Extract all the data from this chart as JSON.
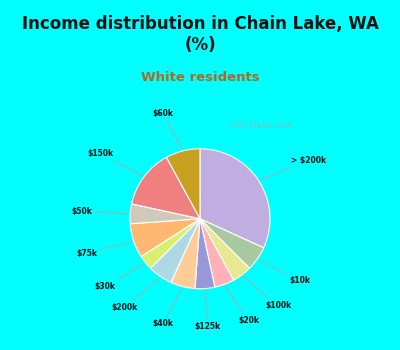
{
  "title": "Income distribution in Chain Lake, WA\n(%)",
  "subtitle": "White residents",
  "title_color": "#111111",
  "subtitle_color": "#b06820",
  "bg_color": "#00ffff",
  "chart_bg_color": "#e8f5ee",
  "labels": [
    "> $200k",
    "$10k",
    "$100k",
    "$20k",
    "$125k",
    "$40k",
    "$200k",
    "$30k",
    "$75k",
    "$50k",
    "$150k",
    "$60k"
  ],
  "values": [
    28,
    5,
    4,
    4,
    4,
    5,
    5,
    3,
    7,
    4,
    12,
    7
  ],
  "colors": [
    "#c0aee0",
    "#a8c8a0",
    "#e8e890",
    "#ffb0b8",
    "#9898d8",
    "#ffcc98",
    "#add8e6",
    "#d8f070",
    "#ffb870",
    "#d0c8b8",
    "#f08080",
    "#c8a020"
  ],
  "start_angle": 90,
  "watermark": "City-Data.com"
}
